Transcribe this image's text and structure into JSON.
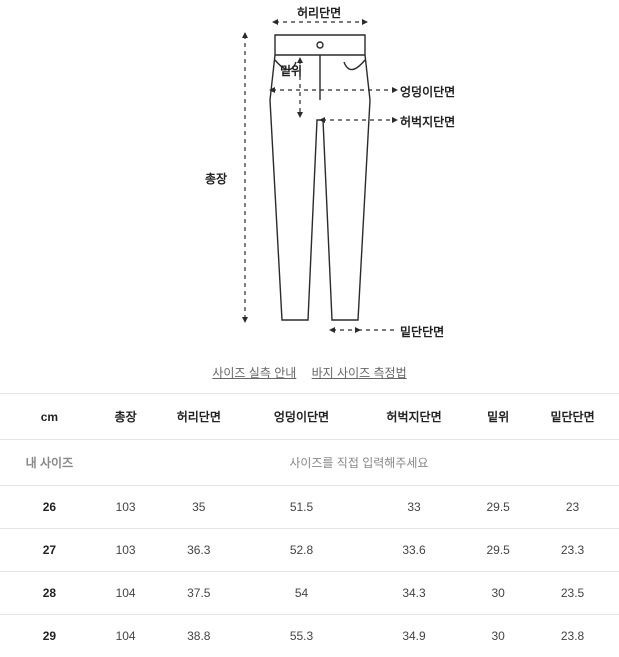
{
  "diagram": {
    "labels": {
      "waist": "허리단면",
      "rise": "밑위",
      "hip": "엉덩이단면",
      "thigh": "허벅지단면",
      "length": "총장",
      "hem": "밑단단면"
    },
    "stroke_color": "#2b2b2b",
    "stroke_width": 1.4,
    "dash": "4 4",
    "font_size": 12
  },
  "links": {
    "guide": "사이즈 실측 안내",
    "method": "바지 사이즈 측정법"
  },
  "table": {
    "unit_header": "cm",
    "columns": [
      "총장",
      "허리단면",
      "엉덩이단면",
      "허벅지단면",
      "밑위",
      "밑단단면"
    ],
    "my_size_label": "내 사이즈",
    "my_size_placeholder": "사이즈를 직접 입력해주세요",
    "rows": [
      {
        "size": "26",
        "values": [
          "103",
          "35",
          "51.5",
          "33",
          "29.5",
          "23"
        ]
      },
      {
        "size": "27",
        "values": [
          "103",
          "36.3",
          "52.8",
          "33.6",
          "29.5",
          "23.3"
        ]
      },
      {
        "size": "28",
        "values": [
          "104",
          "37.5",
          "54",
          "34.3",
          "30",
          "23.5"
        ]
      },
      {
        "size": "29",
        "values": [
          "104",
          "38.8",
          "55.3",
          "34.9",
          "30",
          "23.8"
        ]
      }
    ]
  },
  "colors": {
    "border": "#e5e5e5",
    "text": "#333333",
    "muted": "#888888",
    "bg": "#ffffff"
  }
}
